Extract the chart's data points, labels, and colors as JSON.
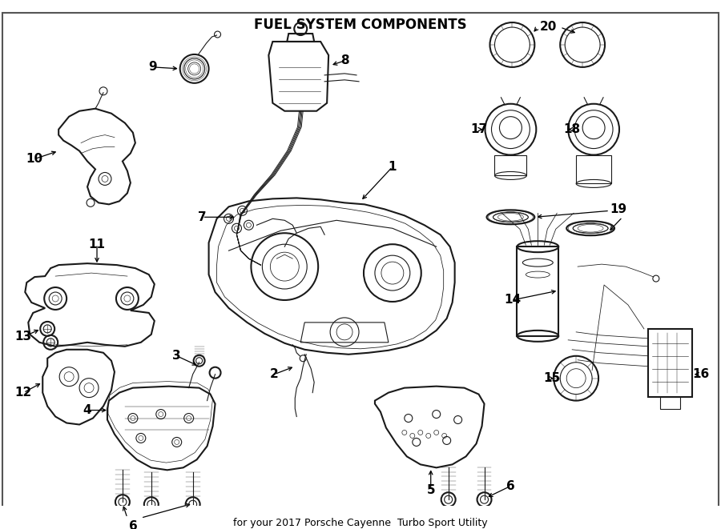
{
  "title": "FUEL SYSTEM COMPONENTS",
  "subtitle": "for your 2017 Porsche Cayenne  Turbo Sport Utility",
  "bg_color": "#ffffff",
  "line_color": "#1a1a1a",
  "fig_width": 9.0,
  "fig_height": 6.61,
  "dpi": 100,
  "border_color": "#333333",
  "label_fontsize": 11,
  "title_fontsize": 12,
  "subtitle_fontsize": 9,
  "lw_main": 1.5,
  "lw_thin": 0.8,
  "lw_thick": 2.2
}
